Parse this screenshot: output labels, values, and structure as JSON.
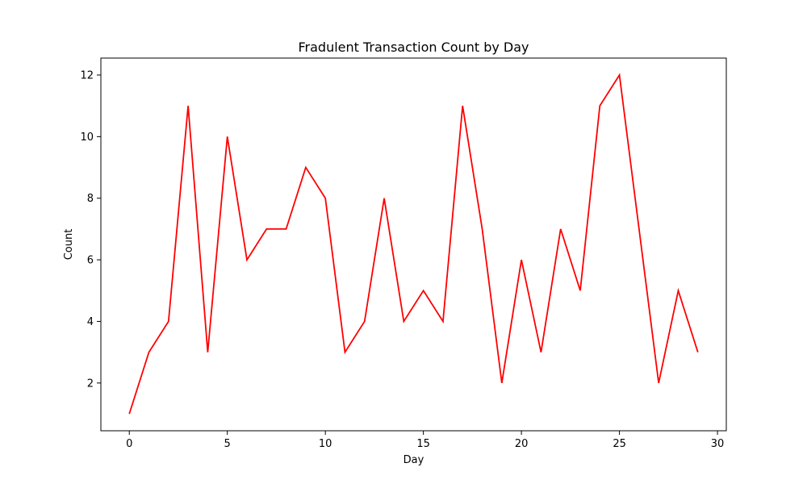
{
  "chart_data": {
    "type": "line",
    "title": "Fradulent Transaction Count by Day",
    "xlabel": "Day",
    "ylabel": "Count",
    "xlim": [
      -1.45,
      30.45
    ],
    "ylim": [
      0.45,
      12.55
    ],
    "xticks": [
      0,
      5,
      10,
      15,
      20,
      25,
      30
    ],
    "yticks": [
      2,
      4,
      6,
      8,
      10,
      12
    ],
    "grid": false,
    "series": [
      {
        "color": "#ff0000",
        "x": [
          0,
          1,
          2,
          3,
          4,
          5,
          6,
          7,
          8,
          9,
          10,
          11,
          12,
          13,
          14,
          15,
          16,
          17,
          18,
          19,
          20,
          21,
          22,
          23,
          24,
          25,
          26,
          27,
          28,
          29
        ],
        "y": [
          1,
          3,
          4,
          11,
          3,
          10,
          6,
          7,
          7,
          9,
          8,
          3,
          4,
          8,
          4,
          5,
          4,
          11,
          7,
          2,
          6,
          3,
          7,
          5,
          11,
          12,
          7,
          2,
          5,
          3
        ]
      }
    ]
  }
}
